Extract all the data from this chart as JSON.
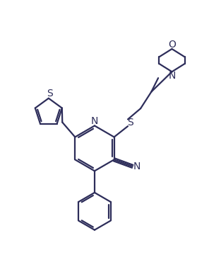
{
  "bg_color": "#ffffff",
  "line_color": "#2d2d5a",
  "line_width": 1.6,
  "fig_width": 2.79,
  "fig_height": 3.91,
  "dpi": 100,
  "xlim": [
    0,
    10
  ],
  "ylim": [
    0,
    14
  ]
}
